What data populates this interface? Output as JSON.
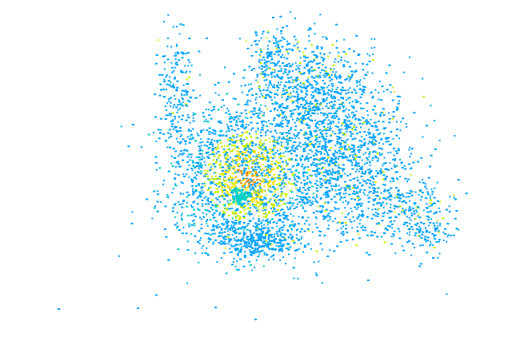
{
  "image": {
    "background": "#ffffff",
    "colors": {
      "low": "#00a2ff",
      "mid_low": "#00d0c8",
      "mid": "#c8f000",
      "mid_high": "#ffe000",
      "high": "#ff8c00"
    }
  }
}
